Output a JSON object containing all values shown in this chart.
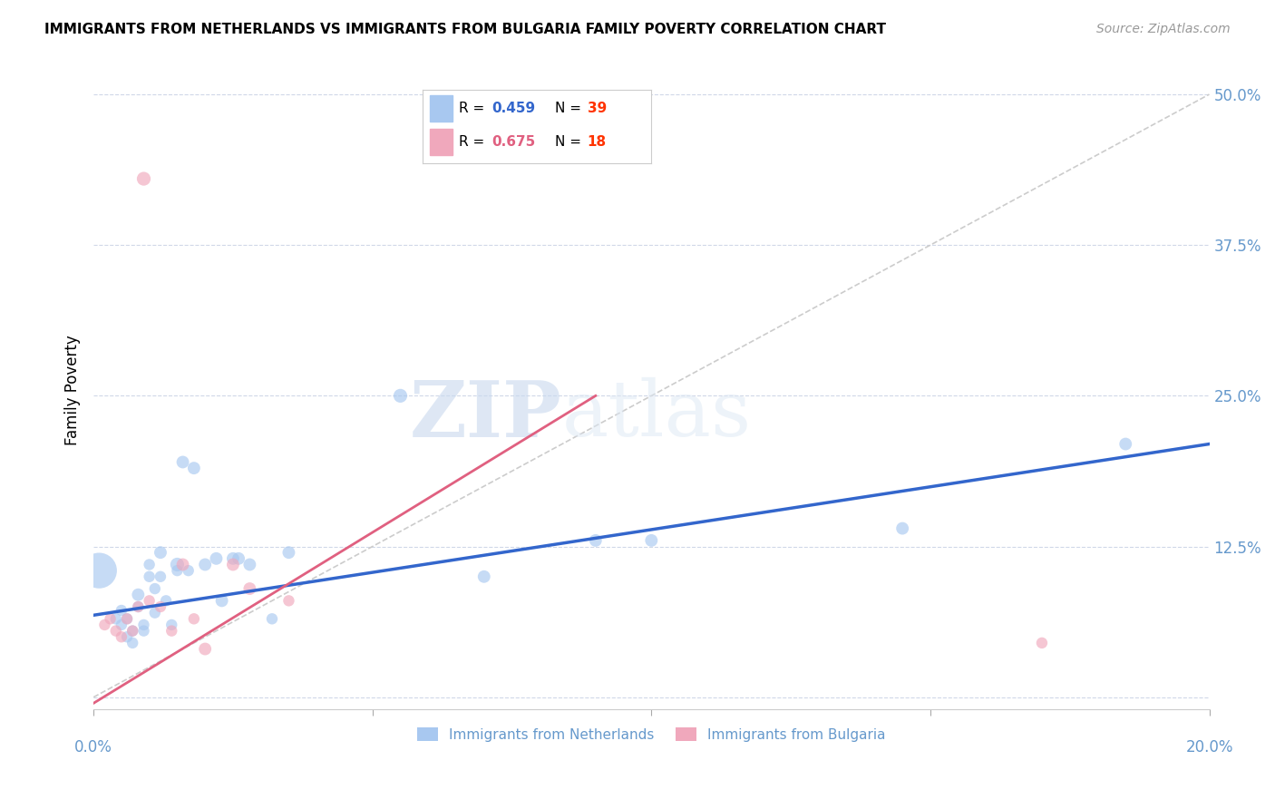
{
  "title": "IMMIGRANTS FROM NETHERLANDS VS IMMIGRANTS FROM BULGARIA FAMILY POVERTY CORRELATION CHART",
  "source": "Source: ZipAtlas.com",
  "ylabel": "Family Poverty",
  "xlim": [
    0.0,
    0.2
  ],
  "ylim": [
    -0.01,
    0.52
  ],
  "yticks": [
    0.0,
    0.125,
    0.25,
    0.375,
    0.5
  ],
  "ytick_labels": [
    "",
    "12.5%",
    "25.0%",
    "37.5%",
    "50.0%"
  ],
  "color_netherlands": "#A8C8F0",
  "color_bulgaria": "#F0A8BC",
  "color_netherlands_line": "#3366CC",
  "color_bulgaria_line": "#E06080",
  "color_axis": "#6699CC",
  "netherlands_x": [
    0.001,
    0.004,
    0.005,
    0.005,
    0.006,
    0.006,
    0.007,
    0.007,
    0.008,
    0.008,
    0.009,
    0.009,
    0.01,
    0.01,
    0.011,
    0.011,
    0.012,
    0.012,
    0.013,
    0.014,
    0.015,
    0.015,
    0.016,
    0.017,
    0.018,
    0.02,
    0.022,
    0.023,
    0.025,
    0.026,
    0.028,
    0.032,
    0.035,
    0.055,
    0.07,
    0.09,
    0.1,
    0.145,
    0.185
  ],
  "netherlands_y": [
    0.105,
    0.065,
    0.072,
    0.06,
    0.05,
    0.065,
    0.055,
    0.045,
    0.075,
    0.085,
    0.06,
    0.055,
    0.11,
    0.1,
    0.09,
    0.07,
    0.12,
    0.1,
    0.08,
    0.06,
    0.11,
    0.105,
    0.195,
    0.105,
    0.19,
    0.11,
    0.115,
    0.08,
    0.115,
    0.115,
    0.11,
    0.065,
    0.12,
    0.25,
    0.1,
    0.13,
    0.13,
    0.14,
    0.21
  ],
  "netherlands_sizes": [
    800,
    80,
    80,
    80,
    80,
    80,
    80,
    80,
    80,
    100,
    80,
    80,
    80,
    80,
    80,
    80,
    100,
    80,
    80,
    80,
    120,
    80,
    100,
    80,
    100,
    100,
    100,
    100,
    100,
    100,
    100,
    80,
    100,
    120,
    100,
    100,
    100,
    100,
    100
  ],
  "bulgaria_x": [
    0.002,
    0.003,
    0.004,
    0.005,
    0.006,
    0.007,
    0.008,
    0.009,
    0.01,
    0.012,
    0.014,
    0.016,
    0.018,
    0.02,
    0.025,
    0.028,
    0.035,
    0.17
  ],
  "bulgaria_y": [
    0.06,
    0.065,
    0.055,
    0.05,
    0.065,
    0.055,
    0.075,
    0.43,
    0.08,
    0.075,
    0.055,
    0.11,
    0.065,
    0.04,
    0.11,
    0.09,
    0.08,
    0.045
  ],
  "bulgaria_sizes": [
    80,
    80,
    80,
    80,
    80,
    80,
    80,
    120,
    80,
    80,
    80,
    100,
    80,
    100,
    100,
    100,
    80,
    80
  ],
  "netherlands_line_x": [
    0.0,
    0.2
  ],
  "netherlands_line_y": [
    0.068,
    0.21
  ],
  "bulgaria_line_x": [
    0.0,
    0.09
  ],
  "bulgaria_line_y": [
    -0.005,
    0.25
  ],
  "ref_line_x": [
    0.0,
    0.2
  ],
  "ref_line_y": [
    0.0,
    0.5
  ]
}
